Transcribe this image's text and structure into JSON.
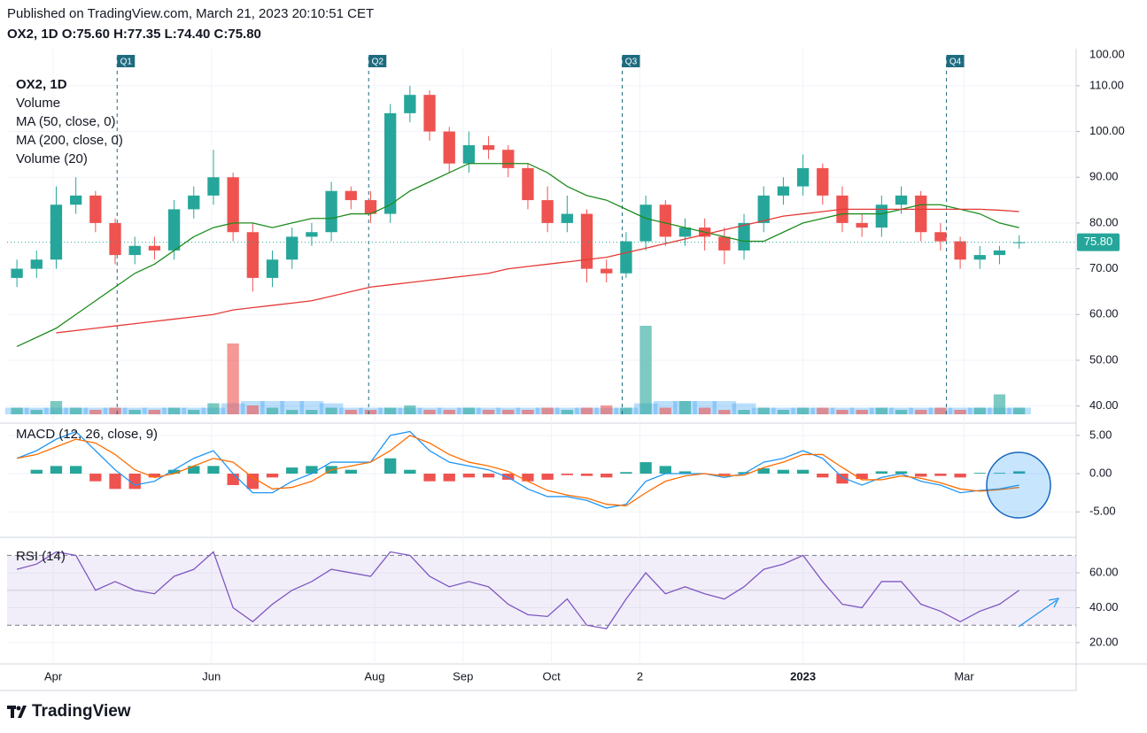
{
  "header": {
    "published": "Published on TradingView.com, March 21, 2023 20:10:51 CET",
    "symbol": "OX2, 1D",
    "quote": [
      [
        "O:",
        "75.60"
      ],
      [
        "H:",
        "77.35"
      ],
      [
        "L:",
        "74.40"
      ],
      [
        "C:",
        "75.80"
      ]
    ]
  },
  "footer": {
    "brand": "TradingView"
  },
  "chart_data": {
    "type": "candlestick",
    "legend": [
      "OX2, 1D",
      "Volume",
      "MA (50, close, 0)",
      "MA (200, close, 0)",
      "Volume (20)"
    ],
    "xlim": [
      -0.5,
      53.9
    ],
    "xticks": [
      {
        "value": 1.85,
        "label": "Apr"
      },
      {
        "value": 9.9,
        "label": "Jun"
      },
      {
        "value": 18.2,
        "label": "Aug"
      },
      {
        "value": 22.7,
        "label": "Sep"
      },
      {
        "value": 27.2,
        "label": "Oct"
      },
      {
        "value": 31.7,
        "label": "2"
      },
      {
        "value": 40,
        "label": "2023"
      },
      {
        "value": 48.2,
        "label": "Mar"
      }
    ],
    "events": [
      {
        "x": 5.1,
        "label": "Q1"
      },
      {
        "x": 17.9,
        "label": "Q2"
      },
      {
        "x": 30.8,
        "label": "Q3"
      },
      {
        "x": 47.3,
        "label": "Q4"
      }
    ],
    "ylim": [
      37.8,
      118.1
    ],
    "yticks": [
      {
        "value": 40,
        "label": "40.00"
      },
      {
        "value": 50,
        "label": "50.00"
      },
      {
        "value": 60,
        "label": "60.00"
      },
      {
        "value": 70,
        "label": "70.00"
      },
      {
        "value": 80,
        "label": "80.00"
      },
      {
        "value": 90,
        "label": "90.00"
      },
      {
        "value": 100,
        "label": "100.00"
      },
      {
        "value": 110,
        "label": "110.00"
      }
    ],
    "top_scale_label": "100.00",
    "last_label": "75.80",
    "up_color": "#26a69a",
    "down_color": "#ef5350",
    "ohlc": {
      "open": [
        68,
        70,
        72,
        84,
        86,
        80,
        73,
        75,
        74,
        83,
        86,
        90,
        78,
        68,
        72,
        77,
        78,
        87,
        85,
        82,
        104,
        108,
        100,
        93,
        97,
        96,
        92,
        85,
        80,
        82,
        70,
        69,
        76,
        84,
        77,
        79,
        77,
        74,
        80,
        86,
        88,
        92,
        86,
        80,
        79,
        84,
        86,
        78,
        76,
        72,
        73,
        75.6
      ],
      "high": [
        72,
        74,
        88,
        90,
        87,
        81,
        77,
        77,
        85,
        88,
        96,
        91,
        80,
        74,
        79,
        80,
        89,
        88,
        87,
        106,
        110,
        109,
        101,
        100,
        99,
        97,
        93,
        88,
        86,
        83,
        72,
        78,
        86,
        85,
        81,
        81,
        79,
        82,
        88,
        90,
        95,
        93,
        88,
        82,
        86,
        88,
        87,
        80,
        77,
        75,
        75,
        77.35
      ],
      "low": [
        66,
        68,
        70,
        82,
        78,
        71,
        71,
        72,
        72,
        81,
        84,
        76,
        65,
        66,
        70,
        75,
        76,
        83,
        80,
        80,
        102,
        98,
        91,
        91,
        94,
        90,
        83,
        78,
        78,
        67,
        67,
        68,
        74,
        75,
        75,
        74,
        71,
        72,
        78,
        84,
        86,
        84,
        78,
        77,
        77,
        82,
        76,
        74,
        70,
        70,
        71,
        74.4
      ],
      "close": [
        70,
        72,
        84,
        86,
        80,
        73,
        75,
        74,
        83,
        86,
        90,
        78,
        68,
        72,
        77,
        78,
        87,
        85,
        82,
        104,
        108,
        100,
        93,
        97,
        96,
        92,
        85,
        80,
        82,
        70,
        69,
        76,
        84,
        77,
        79,
        77,
        74,
        80,
        86,
        88,
        92,
        86,
        80,
        79,
        84,
        86,
        78,
        76,
        72,
        73,
        74,
        75.8
      ]
    },
    "series": [
      {
        "name": "MA (50, close, 0)",
        "color": "#1e8c1e",
        "values": [
          53,
          55,
          57,
          60,
          63,
          66,
          69,
          71,
          74,
          77,
          79,
          80,
          80,
          79,
          80,
          81,
          81,
          82,
          82,
          84,
          87,
          89,
          91,
          93,
          93,
          93,
          93,
          91,
          88,
          86,
          85,
          83,
          81,
          80,
          79,
          78,
          77,
          76,
          76,
          78,
          80,
          81,
          82,
          82,
          82,
          83,
          84,
          84,
          83,
          82,
          80,
          79
        ]
      },
      {
        "name": "MA (200, close, 0)",
        "color": "#e53935",
        "values": [
          null,
          null,
          56,
          56.5,
          57,
          57.5,
          58,
          58.5,
          59,
          59.5,
          60,
          61,
          61.5,
          62,
          62.5,
          63,
          64,
          65,
          66,
          66.5,
          67,
          67.5,
          68,
          68.5,
          69,
          70,
          70.5,
          71,
          71.5,
          72,
          72.5,
          73.5,
          74.5,
          75.5,
          76.5,
          77.5,
          78.5,
          79.5,
          80.5,
          81.5,
          82,
          82.5,
          83,
          83,
          83,
          83,
          83,
          83,
          83,
          83,
          82.8,
          82.5
        ]
      }
    ],
    "volume": [
      3,
      2,
      6,
      3,
      2,
      3,
      2,
      2,
      3,
      2,
      5,
      32,
      4,
      3,
      2,
      2,
      3,
      2,
      2,
      3,
      4,
      2,
      2,
      3,
      2,
      2,
      2,
      3,
      2,
      3,
      4,
      3,
      40,
      3,
      6,
      3,
      2,
      2,
      3,
      2,
      3,
      3,
      2,
      2,
      3,
      2,
      2,
      3,
      2,
      3,
      9,
      3
    ],
    "volume_ma": [
      3,
      3,
      3,
      3,
      3,
      3,
      3,
      3,
      3,
      3,
      3,
      5,
      6,
      6,
      6,
      6,
      5,
      3,
      3,
      3,
      3,
      3,
      3,
      3,
      3,
      3,
      3,
      3,
      3,
      3,
      3,
      3,
      5,
      6,
      6,
      6,
      6,
      5,
      3,
      3,
      3,
      3,
      3,
      3,
      3,
      3,
      3,
      3,
      3,
      3,
      3,
      3
    ],
    "macd": {
      "title": "MACD (12, 26, close, 9)",
      "ylim": [
        -8.1,
        6.6
      ],
      "yticks": [
        {
          "value": 5,
          "label": "5.00"
        },
        {
          "value": 0,
          "label": "0.00"
        },
        {
          "value": -5,
          "label": "-5.00"
        }
      ],
      "macd_color": "#2196f3",
      "signal_color": "#ff6d00",
      "macd": [
        2,
        3,
        4.5,
        5.5,
        3,
        0.5,
        -1.5,
        -1,
        0.5,
        2,
        3,
        0,
        -2.5,
        -2.5,
        -1,
        0,
        1.5,
        1.5,
        1.5,
        5,
        5.5,
        3,
        1.5,
        1,
        0.5,
        -0.5,
        -2,
        -3,
        -3,
        -3.5,
        -4.5,
        -4,
        -1,
        0,
        0,
        0,
        -0.5,
        0,
        1.5,
        2,
        3,
        2,
        -0.5,
        -1.5,
        -0.5,
        0,
        -1,
        -1.5,
        -2.5,
        -2.2,
        -2,
        -1.5
      ],
      "signal": [
        2,
        2.5,
        3.5,
        4.5,
        4,
        2.5,
        0.5,
        -0.5,
        0,
        1,
        2,
        1.5,
        -0.5,
        -2,
        -1.8,
        -1,
        0.5,
        1,
        1.5,
        3,
        5,
        4,
        2.5,
        1.5,
        1,
        0.3,
        -1,
        -2.2,
        -2.8,
        -3.2,
        -4,
        -4.2,
        -2.5,
        -1,
        -0.3,
        0,
        -0.3,
        -0.2,
        0.8,
        1.5,
        2.5,
        2.5,
        0.8,
        -0.8,
        -0.8,
        -0.3,
        -0.6,
        -1.2,
        -2,
        -2.3,
        -2.1,
        -1.8
      ],
      "histogram": [
        0,
        0.5,
        1,
        1,
        -1,
        -2,
        -2,
        -0.5,
        0.5,
        1,
        1,
        -1.5,
        -2,
        -0.5,
        0.8,
        1,
        1,
        0.5,
        0,
        2,
        0.5,
        -1,
        -1,
        -0.5,
        -0.5,
        -0.8,
        -1,
        -0.8,
        -0.2,
        -0.3,
        -0.5,
        0.2,
        1.5,
        1,
        0.3,
        0,
        -0.2,
        0.2,
        0.7,
        0.5,
        0.5,
        -0.5,
        -1.3,
        -0.7,
        0.3,
        0.3,
        -0.4,
        -0.3,
        -0.5,
        0.1,
        0.1,
        0.3
      ]
    },
    "rsi": {
      "title": "RSI (14)",
      "color": "#7e57c2",
      "ylim": [
        8.8,
        78.8
      ],
      "bands": [
        30,
        70
      ],
      "middle": 50,
      "yticks": [
        {
          "value": 20,
          "label": "20.00"
        },
        {
          "value": 40,
          "label": "40.00"
        },
        {
          "value": 60,
          "label": "60.00"
        }
      ],
      "values": [
        62,
        65,
        72,
        70,
        50,
        55,
        50,
        48,
        58,
        62,
        72,
        40,
        32,
        42,
        50,
        55,
        62,
        60,
        58,
        72,
        70,
        58,
        52,
        55,
        52,
        42,
        36,
        35,
        45,
        30,
        28,
        45,
        60,
        48,
        52,
        48,
        45,
        52,
        62,
        65,
        70,
        55,
        42,
        40,
        55,
        55,
        42,
        38,
        32,
        38,
        42,
        50
      ]
    }
  }
}
